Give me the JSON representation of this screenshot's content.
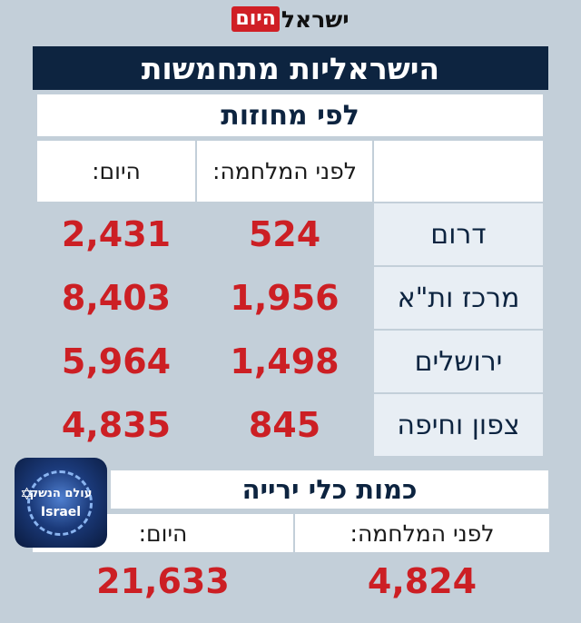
{
  "logo": {
    "part1": "ישראל",
    "part2": "היום"
  },
  "title": "הישראליות מתחמשות",
  "by_district": {
    "heading": "לפי מחוזות",
    "col_before": "לפני המלחמה:",
    "col_today": "היום:",
    "rows": [
      {
        "region": "דרום",
        "before": "524",
        "today": "2,431"
      },
      {
        "region": "מרכז ות\"א",
        "before": "1,956",
        "today": "8,403"
      },
      {
        "region": "ירושלים",
        "before": "1,498",
        "today": "5,964"
      },
      {
        "region": "צפון וחיפה",
        "before": "845",
        "today": "4,835"
      }
    ]
  },
  "weapons": {
    "heading": "כמות כלי ירייה",
    "col_before": "לפני המלחמה:",
    "col_today": "היום:",
    "before": "4,824",
    "today": "21,633"
  },
  "badge": {
    "line1": "עולם הנשק",
    "line2": "Israel"
  },
  "colors": {
    "navy": "#0d2440",
    "red": "#cc1f24",
    "background": "#c3cfd9"
  }
}
